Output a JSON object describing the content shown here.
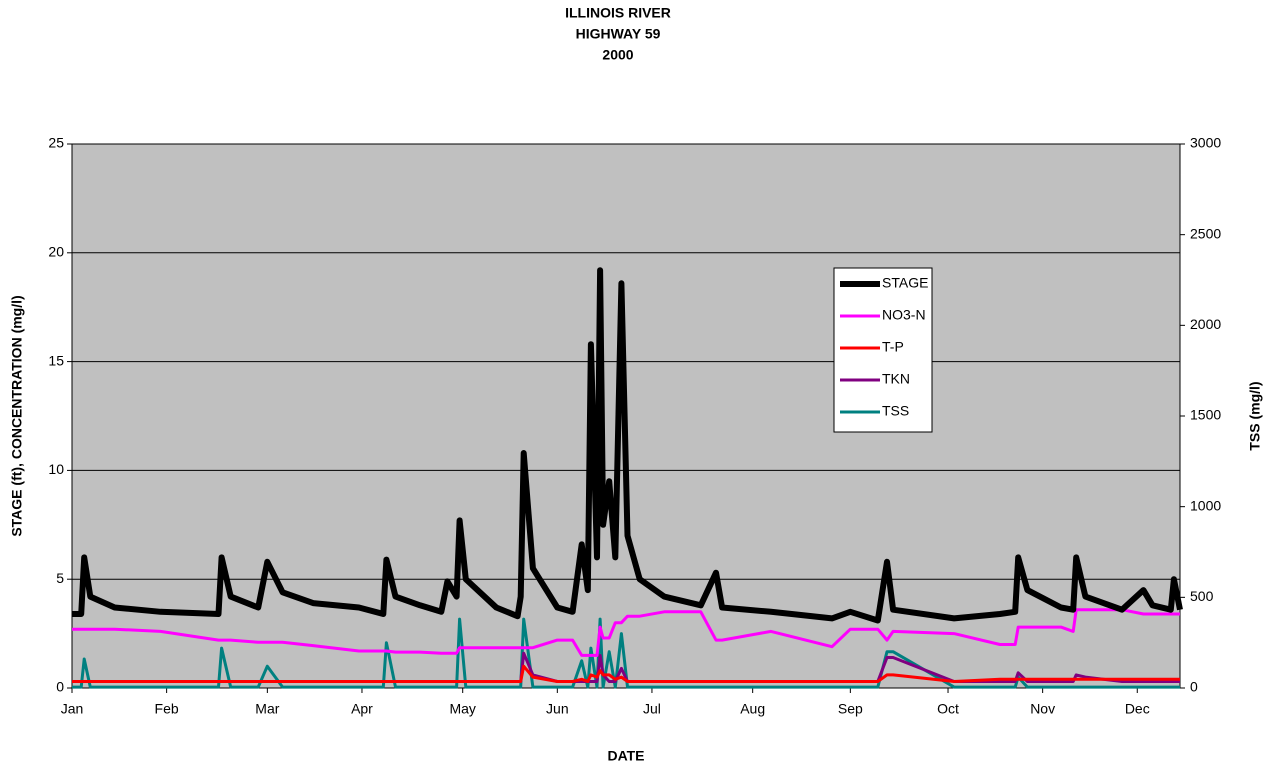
{
  "chart_data": {
    "type": "line",
    "title": [
      "ILLINOIS RIVER",
      "HIGHWAY 59",
      "2000"
    ],
    "x_label": "DATE",
    "y_label": "STAGE (ft), CONCENTRATION (mg/l)",
    "y2_label": "TSS (mg/l)",
    "xlim": [
      1,
      364
    ],
    "xticks": [
      {
        "value": 1,
        "label": "Jan"
      },
      {
        "value": 32,
        "label": "Feb"
      },
      {
        "value": 65,
        "label": "Mar"
      },
      {
        "value": 96,
        "label": "Apr"
      },
      {
        "value": 129,
        "label": "May"
      },
      {
        "value": 160,
        "label": "Jun"
      },
      {
        "value": 191,
        "label": "Jul"
      },
      {
        "value": 224,
        "label": "Aug"
      },
      {
        "value": 256,
        "label": "Sep"
      },
      {
        "value": 288,
        "label": "Oct"
      },
      {
        "value": 319,
        "label": "Nov"
      },
      {
        "value": 350,
        "label": "Dec"
      }
    ],
    "ylim": [
      0,
      25
    ],
    "yticks": [
      0,
      5,
      10,
      15,
      20,
      25
    ],
    "y2lim": [
      0,
      3000
    ],
    "y2ticks": [
      0,
      500,
      1000,
      1500,
      2000,
      2500,
      3000
    ],
    "grid": true,
    "background": "#c0c0c0",
    "legend": "upper right",
    "x": [
      1,
      4,
      5,
      7,
      15,
      30,
      49,
      50,
      53,
      62,
      65,
      70,
      80,
      95,
      103,
      104,
      107,
      115,
      122,
      124,
      127,
      128,
      130,
      140,
      147,
      148,
      149,
      152,
      160,
      165,
      168,
      170,
      171,
      173,
      174,
      175,
      177,
      179,
      181,
      183,
      187,
      195,
      207,
      212,
      214,
      230,
      250,
      256,
      265,
      268,
      270,
      290,
      305,
      310,
      311,
      314,
      325,
      329,
      330,
      333,
      345,
      352,
      355,
      361,
      362,
      364
    ],
    "series": [
      {
        "name": "STAGE",
        "color": "#000000",
        "width": 6,
        "values": [
          3.4,
          3.4,
          6.0,
          4.2,
          3.7,
          3.5,
          3.4,
          6.0,
          4.2,
          3.7,
          5.8,
          4.4,
          3.9,
          3.7,
          3.4,
          5.9,
          4.2,
          3.8,
          3.5,
          4.9,
          4.2,
          7.7,
          5.0,
          3.7,
          3.3,
          4.2,
          10.8,
          5.5,
          3.7,
          3.5,
          6.6,
          4.5,
          15.8,
          6.0,
          19.2,
          7.5,
          9.5,
          6.0,
          18.6,
          7.0,
          5.0,
          4.2,
          3.8,
          5.3,
          3.7,
          3.5,
          3.2,
          3.5,
          3.1,
          5.8,
          3.6,
          3.2,
          3.4,
          3.5,
          6.0,
          4.5,
          3.7,
          3.6,
          6.0,
          4.2,
          3.6,
          4.5,
          3.8,
          3.6,
          5.0,
          3.6
        ]
      },
      {
        "name": "NO3-N",
        "color": "#ff00ff",
        "width": 3,
        "values": [
          2.7,
          2.7,
          2.7,
          2.7,
          2.7,
          2.6,
          2.2,
          2.2,
          2.2,
          2.1,
          2.1,
          2.1,
          1.95,
          1.7,
          1.7,
          1.7,
          1.65,
          1.65,
          1.6,
          1.6,
          1.6,
          1.85,
          1.85,
          1.85,
          1.85,
          1.85,
          1.85,
          1.85,
          2.2,
          2.2,
          1.5,
          1.5,
          1.5,
          1.5,
          2.8,
          2.3,
          2.3,
          3.0,
          3.0,
          3.3,
          3.3,
          3.5,
          3.5,
          2.2,
          2.2,
          2.6,
          1.9,
          2.7,
          2.7,
          2.2,
          2.6,
          2.5,
          2.0,
          2.0,
          2.8,
          2.8,
          2.8,
          2.6,
          3.6,
          3.6,
          3.6,
          3.4,
          3.4,
          3.4,
          3.4,
          3.4
        ]
      },
      {
        "name": "T-P",
        "color": "#ff0000",
        "width": 3,
        "values": [
          0.3,
          0.3,
          0.3,
          0.3,
          0.3,
          0.3,
          0.3,
          0.3,
          0.3,
          0.3,
          0.3,
          0.3,
          0.3,
          0.3,
          0.3,
          0.3,
          0.3,
          0.3,
          0.3,
          0.3,
          0.3,
          0.3,
          0.3,
          0.3,
          0.3,
          0.3,
          1.0,
          0.5,
          0.3,
          0.3,
          0.4,
          0.3,
          0.6,
          0.5,
          0.8,
          0.6,
          0.6,
          0.4,
          0.5,
          0.3,
          0.3,
          0.3,
          0.3,
          0.3,
          0.3,
          0.3,
          0.3,
          0.3,
          0.3,
          0.6,
          0.6,
          0.3,
          0.4,
          0.4,
          0.4,
          0.4,
          0.4,
          0.4,
          0.4,
          0.4,
          0.4,
          0.4,
          0.4,
          0.4,
          0.4,
          0.4
        ]
      },
      {
        "name": "TKN",
        "color": "#800080",
        "width": 3,
        "values": [
          0.3,
          0.3,
          0.3,
          0.3,
          0.3,
          0.3,
          0.3,
          0.3,
          0.3,
          0.3,
          0.3,
          0.3,
          0.3,
          0.3,
          0.3,
          0.3,
          0.3,
          0.3,
          0.3,
          0.3,
          0.3,
          0.3,
          0.3,
          0.3,
          0.3,
          0.3,
          1.6,
          0.6,
          0.3,
          0.3,
          0.3,
          0.3,
          0.3,
          0.3,
          1.5,
          0.6,
          0.3,
          0.3,
          0.9,
          0.3,
          0.3,
          0.3,
          0.3,
          0.3,
          0.3,
          0.3,
          0.3,
          0.3,
          0.3,
          1.4,
          1.4,
          0.3,
          0.3,
          0.3,
          0.7,
          0.3,
          0.3,
          0.3,
          0.6,
          0.5,
          0.3,
          0.3,
          0.3,
          0.3,
          0.3,
          0.3
        ]
      },
      {
        "name": "TSS",
        "color": "#008080",
        "width": 3,
        "axis": "y2",
        "values": [
          5,
          5,
          160,
          5,
          5,
          5,
          5,
          220,
          5,
          5,
          120,
          5,
          5,
          5,
          5,
          250,
          5,
          5,
          5,
          5,
          5,
          380,
          5,
          5,
          5,
          5,
          380,
          5,
          5,
          5,
          150,
          5,
          220,
          5,
          380,
          5,
          200,
          5,
          300,
          5,
          5,
          5,
          5,
          5,
          5,
          5,
          5,
          5,
          5,
          200,
          200,
          5,
          5,
          5,
          60,
          5,
          5,
          5,
          5,
          5,
          5,
          5,
          5,
          5,
          5,
          5
        ]
      }
    ]
  }
}
